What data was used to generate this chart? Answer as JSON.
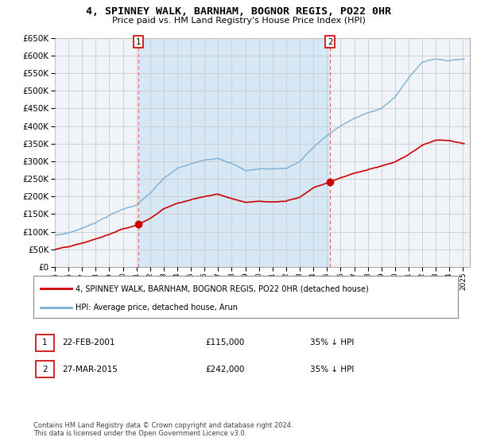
{
  "title": "4, SPINNEY WALK, BARNHAM, BOGNOR REGIS, PO22 0HR",
  "subtitle": "Price paid vs. HM Land Registry's House Price Index (HPI)",
  "legend_line1": "4, SPINNEY WALK, BARNHAM, BOGNOR REGIS, PO22 0HR (detached house)",
  "legend_line2": "HPI: Average price, detached house, Arun",
  "footnote": "Contains HM Land Registry data © Crown copyright and database right 2024.\nThis data is licensed under the Open Government Licence v3.0.",
  "marker1_date": "22-FEB-2001",
  "marker1_price": "£115,000",
  "marker1_hpi": "35% ↓ HPI",
  "marker1_year": 2001.14,
  "marker2_date": "27-MAR-2015",
  "marker2_price": "£242,000",
  "marker2_hpi": "35% ↓ HPI",
  "marker2_year": 2015.24,
  "ylim": [
    0,
    650000
  ],
  "xlim_start": 1995,
  "xlim_end": 2025.5,
  "red_color": "#cc0000",
  "blue_color": "#7ab0d4",
  "shade_color": "#d6e8f5",
  "marker_color": "#cc0000",
  "grid_color": "#cccccc",
  "background_color": "#ffffff",
  "plot_bg_color": "#f0f4f8"
}
